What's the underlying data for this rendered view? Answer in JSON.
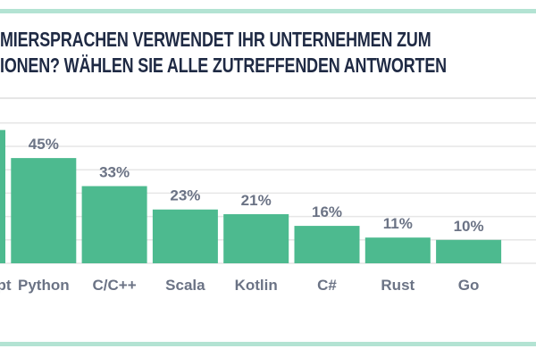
{
  "title": {
    "line1": "MIERSPRACHEN VERWENDET IHR UNTERNEHMEN ZUM",
    "line2": "IONEN? WÄHLEN SIE ALLE ZUTREFFENDEN ANTWORTEN"
  },
  "colors": {
    "bar": "#4dba8f",
    "accent_line": "#b3e3d3",
    "text": "#1f2a44",
    "label": "#6b7385",
    "grid": "#e6e6e6"
  },
  "chart_data": {
    "type": "bar",
    "categories": [
      "JavaScript",
      "Python",
      "C/C++",
      "Scala",
      "Kotlin",
      "C#",
      "Rust",
      "Go"
    ],
    "values": [
      57,
      45,
      33,
      23,
      21,
      16,
      11,
      10
    ],
    "value_labels": [
      "",
      "45%",
      "33%",
      "23%",
      "21%",
      "16%",
      "11%",
      "10%"
    ],
    "ylim": [
      0,
      60
    ],
    "grid": true,
    "unit": "%"
  }
}
